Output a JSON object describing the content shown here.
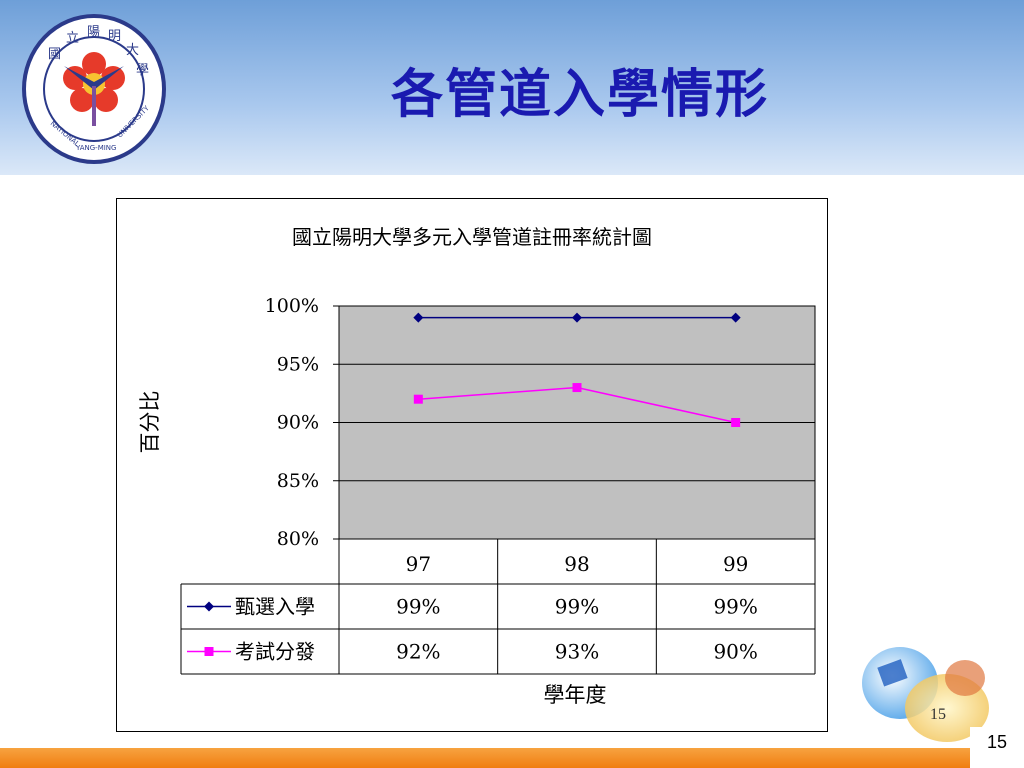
{
  "slide": {
    "title": "各管道入學情形",
    "page_number": "15",
    "corner_number": "15",
    "logo_text": "NATIONAL YANG-MING UNIVERSITY",
    "logo_chars": "國立陽明大學"
  },
  "colors": {
    "title": "#1a1ab0",
    "plot_bg": "#c0c0c0",
    "series1": "#000080",
    "series2": "#ff00ff",
    "footer": "#f08a20"
  },
  "chart_data": {
    "type": "line",
    "title": "國立陽明大學多元入學管道註冊率統計圖",
    "xlabel": "學年度",
    "ylabel": "百分比",
    "categories": [
      "97",
      "98",
      "99"
    ],
    "ylim": [
      80,
      100
    ],
    "yticks": [
      "100%",
      "95%",
      "90%",
      "85%",
      "80%"
    ],
    "grid": true,
    "data_table": true,
    "series": [
      {
        "name": "甄選入學",
        "values": [
          99,
          99,
          99
        ],
        "labels": [
          "99%",
          "99%",
          "99%"
        ],
        "color": "#000080",
        "marker": "diamond"
      },
      {
        "name": "考試分發",
        "values": [
          92,
          93,
          90
        ],
        "labels": [
          "92%",
          "93%",
          "90%"
        ],
        "color": "#ff00ff",
        "marker": "square"
      }
    ]
  }
}
